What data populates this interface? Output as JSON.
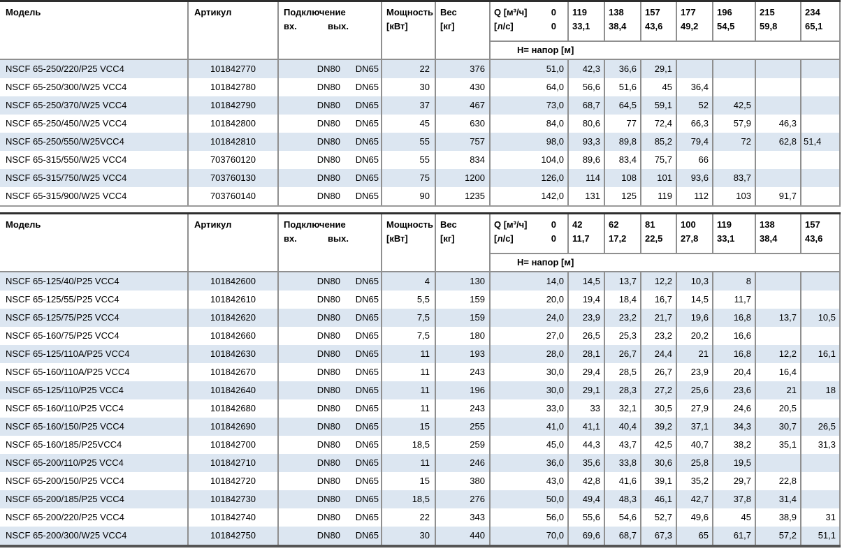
{
  "style": {
    "stripe": "#dce6f1",
    "border_gray": "#8f8f8f",
    "line_dark": "#2e2e2e",
    "t1_bottom": "#9a9a9a",
    "t2_bottom": "#555555"
  },
  "columns": {
    "model": "Модель",
    "article": "Артикул",
    "connection": "Подключение",
    "conn_in": "вх.",
    "conn_out": "вых.",
    "power_l1": "Мощность",
    "power_l2": "[кВт]",
    "weight_l1": "Вес",
    "weight_l2": "[кг]",
    "q_label_l1": "Q [м³/ч]",
    "q_zero_l1": "0",
    "q_label_l2": "[л/с]",
    "q_zero_l2": "0",
    "head_row_label": "H= напор [м]"
  },
  "tables": [
    {
      "last_col_align": "left",
      "q_columns": [
        {
          "m3h": "119",
          "ls": "33,1"
        },
        {
          "m3h": "138",
          "ls": "38,4"
        },
        {
          "m3h": "157",
          "ls": "43,6"
        },
        {
          "m3h": "177",
          "ls": "49,2"
        },
        {
          "m3h": "196",
          "ls": "54,5"
        },
        {
          "m3h": "215",
          "ls": "59,8"
        },
        {
          "m3h": "234",
          "ls": "65,1"
        }
      ],
      "rows": [
        {
          "model": "NSCF 65-250/220/P25 VCC4",
          "article": "101842770",
          "dn_in": "DN80",
          "dn_out": "DN65",
          "power": "22",
          "weight": "376",
          "h": [
            "51,0",
            "42,3",
            "36,6",
            "29,1",
            "",
            "",
            "",
            ""
          ]
        },
        {
          "model": "NSCF 65-250/300/W25 VCC4",
          "article": "101842780",
          "dn_in": "DN80",
          "dn_out": "DN65",
          "power": "30",
          "weight": "430",
          "h": [
            "64,0",
            "56,6",
            "51,6",
            "45",
            "36,4",
            "",
            "",
            ""
          ]
        },
        {
          "model": "NSCF 65-250/370/W25 VCC4",
          "article": "101842790",
          "dn_in": "DN80",
          "dn_out": "DN65",
          "power": "37",
          "weight": "467",
          "h": [
            "73,0",
            "68,7",
            "64,5",
            "59,1",
            "52",
            "42,5",
            "",
            ""
          ]
        },
        {
          "model": "NSCF 65-250/450/W25 VCC4",
          "article": "101842800",
          "dn_in": "DN80",
          "dn_out": "DN65",
          "power": "45",
          "weight": "630",
          "h": [
            "84,0",
            "80,6",
            "77",
            "72,4",
            "66,3",
            "57,9",
            "46,3",
            ""
          ]
        },
        {
          "model": "NSCF 65-250/550/W25VCC4",
          "article": "101842810",
          "dn_in": "DN80",
          "dn_out": "DN65",
          "power": "55",
          "weight": "757",
          "h": [
            "98,0",
            "93,3",
            "89,8",
            "85,2",
            "79,4",
            "72",
            "62,8",
            "51,4"
          ]
        },
        {
          "model": "NSCF 65-315/550/W25 VCC4",
          "article": "703760120",
          "dn_in": "DN80",
          "dn_out": "DN65",
          "power": "55",
          "weight": "834",
          "h": [
            "104,0",
            "89,6",
            "83,4",
            "75,7",
            "66",
            "",
            "",
            ""
          ]
        },
        {
          "model": "NSCF 65-315/750/W25 VCC4",
          "article": "703760130",
          "dn_in": "DN80",
          "dn_out": "DN65",
          "power": "75",
          "weight": "1200",
          "h": [
            "126,0",
            "114",
            "108",
            "101",
            "93,6",
            "83,7",
            "",
            ""
          ]
        },
        {
          "model": "NSCF 65-315/900/W25 VCC4",
          "article": "703760140",
          "dn_in": "DN80",
          "dn_out": "DN65",
          "power": "90",
          "weight": "1235",
          "h": [
            "142,0",
            "131",
            "125",
            "119",
            "112",
            "103",
            "91,7",
            ""
          ]
        }
      ]
    },
    {
      "last_col_align": "right",
      "q_columns": [
        {
          "m3h": "42",
          "ls": "11,7"
        },
        {
          "m3h": "62",
          "ls": "17,2"
        },
        {
          "m3h": "81",
          "ls": "22,5"
        },
        {
          "m3h": "100",
          "ls": "27,8"
        },
        {
          "m3h": "119",
          "ls": "33,1"
        },
        {
          "m3h": "138",
          "ls": "38,4"
        },
        {
          "m3h": "157",
          "ls": "43,6"
        }
      ],
      "rows": [
        {
          "model": "NSCF 65-125/40/P25 VCC4",
          "article": "101842600",
          "dn_in": "DN80",
          "dn_out": "DN65",
          "power": "4",
          "weight": "130",
          "h": [
            "14,0",
            "14,5",
            "13,7",
            "12,2",
            "10,3",
            "8",
            "",
            ""
          ]
        },
        {
          "model": "NSCF 65-125/55/P25 VCC4",
          "article": "101842610",
          "dn_in": "DN80",
          "dn_out": "DN65",
          "power": "5,5",
          "weight": "159",
          "h": [
            "20,0",
            "19,4",
            "18,4",
            "16,7",
            "14,5",
            "11,7",
            "",
            ""
          ]
        },
        {
          "model": "NSCF 65-125/75/P25 VCC4",
          "article": "101842620",
          "dn_in": "DN80",
          "dn_out": "DN65",
          "power": "7,5",
          "weight": "159",
          "h": [
            "24,0",
            "23,9",
            "23,2",
            "21,7",
            "19,6",
            "16,8",
            "13,7",
            "10,5"
          ]
        },
        {
          "model": "NSCF 65-160/75/P25 VCC4",
          "article": "101842660",
          "dn_in": "DN80",
          "dn_out": "DN65",
          "power": "7,5",
          "weight": "180",
          "h": [
            "27,0",
            "26,5",
            "25,3",
            "23,2",
            "20,2",
            "16,6",
            "",
            ""
          ]
        },
        {
          "model": "NSCF 65-125/110A/P25 VCC4",
          "article": "101842630",
          "dn_in": "DN80",
          "dn_out": "DN65",
          "power": "11",
          "weight": "193",
          "h": [
            "28,0",
            "28,1",
            "26,7",
            "24,4",
            "21",
            "16,8",
            "12,2",
            "16,1"
          ]
        },
        {
          "model": "NSCF 65-160/110A/P25 VCC4",
          "article": "101842670",
          "dn_in": "DN80",
          "dn_out": "DN65",
          "power": "11",
          "weight": "243",
          "h": [
            "30,0",
            "29,4",
            "28,5",
            "26,7",
            "23,9",
            "20,4",
            "16,4",
            ""
          ]
        },
        {
          "model": "NSCF 65-125/110/P25 VCC4",
          "article": "101842640",
          "dn_in": "DN80",
          "dn_out": "DN65",
          "power": "11",
          "weight": "196",
          "h": [
            "30,0",
            "29,1",
            "28,3",
            "27,2",
            "25,6",
            "23,6",
            "21",
            "18"
          ]
        },
        {
          "model": "NSCF 65-160/110/P25 VCC4",
          "article": "101842680",
          "dn_in": "DN80",
          "dn_out": "DN65",
          "power": "11",
          "weight": "243",
          "h": [
            "33,0",
            "33",
            "32,1",
            "30,5",
            "27,9",
            "24,6",
            "20,5",
            ""
          ]
        },
        {
          "model": "NSCF 65-160/150/P25 VCC4",
          "article": "101842690",
          "dn_in": "DN80",
          "dn_out": "DN65",
          "power": "15",
          "weight": "255",
          "h": [
            "41,0",
            "41,1",
            "40,4",
            "39,2",
            "37,1",
            "34,3",
            "30,7",
            "26,5"
          ]
        },
        {
          "model": "NSCF 65-160/185/P25VCC4",
          "article": "101842700",
          "dn_in": "DN80",
          "dn_out": "DN65",
          "power": "18,5",
          "weight": "259",
          "h": [
            "45,0",
            "44,3",
            "43,7",
            "42,5",
            "40,7",
            "38,2",
            "35,1",
            "31,3"
          ]
        },
        {
          "model": "NSCF 65-200/110/P25 VCC4",
          "article": "101842710",
          "dn_in": "DN80",
          "dn_out": "DN65",
          "power": "11",
          "weight": "246",
          "h": [
            "36,0",
            "35,6",
            "33,8",
            "30,6",
            "25,8",
            "19,5",
            "",
            ""
          ]
        },
        {
          "model": "NSCF 65-200/150/P25 VCC4",
          "article": "101842720",
          "dn_in": "DN80",
          "dn_out": "DN65",
          "power": "15",
          "weight": "380",
          "h": [
            "43,0",
            "42,8",
            "41,6",
            "39,1",
            "35,2",
            "29,7",
            "22,8",
            ""
          ]
        },
        {
          "model": "NSCF 65-200/185/P25 VCC4",
          "article": "101842730",
          "dn_in": "DN80",
          "dn_out": "DN65",
          "power": "18,5",
          "weight": "276",
          "h": [
            "50,0",
            "49,4",
            "48,3",
            "46,1",
            "42,7",
            "37,8",
            "31,4",
            ""
          ]
        },
        {
          "model": "NSCF 65-200/220/P25 VCC4",
          "article": "101842740",
          "dn_in": "DN80",
          "dn_out": "DN65",
          "power": "22",
          "weight": "343",
          "h": [
            "56,0",
            "55,6",
            "54,6",
            "52,7",
            "49,6",
            "45",
            "38,9",
            "31"
          ]
        },
        {
          "model": "NSCF 65-200/300/W25 VCC4",
          "article": "101842750",
          "dn_in": "DN80",
          "dn_out": "DN65",
          "power": "30",
          "weight": "440",
          "h": [
            "70,0",
            "69,6",
            "68,7",
            "67,3",
            "65",
            "61,7",
            "57,2",
            "51,1"
          ]
        }
      ]
    }
  ]
}
